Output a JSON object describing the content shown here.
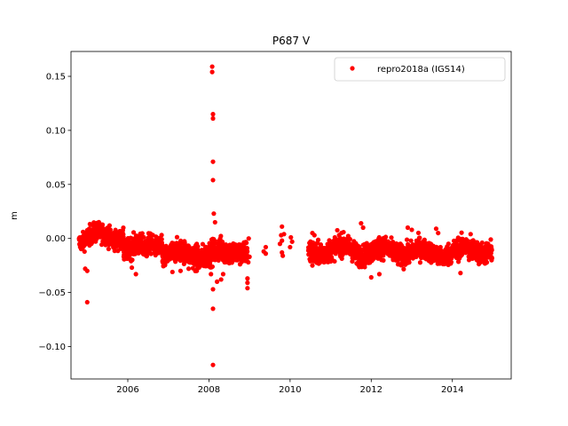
{
  "chart_data": {
    "type": "scatter",
    "title": "P687 V",
    "xlabel": "",
    "ylabel": "m",
    "xlim": [
      2004.6,
      2015.45
    ],
    "ylim": [
      -0.13,
      0.173
    ],
    "x_ticks": [
      2006,
      2008,
      2010,
      2012,
      2014
    ],
    "x_tick_labels": [
      "2006",
      "2008",
      "2010",
      "2012",
      "2014"
    ],
    "y_ticks": [
      -0.1,
      -0.05,
      0.0,
      0.05,
      0.1,
      0.15
    ],
    "y_tick_labels": [
      "−0.10",
      "−0.05",
      "0.00",
      "0.05",
      "0.10",
      "0.15"
    ],
    "grid": false,
    "legend_position": "top-right",
    "series": [
      {
        "name": "repro2018a (IGS14)",
        "color": "#ff0000",
        "marker": "circle",
        "segments": [
          {
            "x_start": 2004.8,
            "x_end": 2005.0,
            "mean": 0.0,
            "spread": 0.007
          },
          {
            "x_start": 2005.0,
            "x_end": 2005.9,
            "mean": 0.002,
            "spread": 0.008
          },
          {
            "x_start": 2005.9,
            "x_end": 2006.5,
            "mean": -0.01,
            "spread": 0.009
          },
          {
            "x_start": 2006.5,
            "x_end": 2006.85,
            "mean": -0.004,
            "spread": 0.008
          },
          {
            "x_start": 2006.85,
            "x_end": 2007.6,
            "mean": -0.015,
            "spread": 0.009
          },
          {
            "x_start": 2007.6,
            "x_end": 2008.6,
            "mean": -0.014,
            "spread": 0.01
          },
          {
            "x_start": 2008.6,
            "x_end": 2008.95,
            "mean": -0.01,
            "spread": 0.009
          },
          {
            "x_start": 2010.45,
            "x_end": 2010.7,
            "mean": -0.012,
            "spread": 0.01
          },
          {
            "x_start": 2010.7,
            "x_end": 2011.6,
            "mean": -0.01,
            "spread": 0.009
          },
          {
            "x_start": 2011.6,
            "x_end": 2012.4,
            "mean": -0.012,
            "spread": 0.009
          },
          {
            "x_start": 2012.4,
            "x_end": 2013.2,
            "mean": -0.012,
            "spread": 0.009
          },
          {
            "x_start": 2013.2,
            "x_end": 2013.8,
            "mean": -0.014,
            "spread": 0.008
          },
          {
            "x_start": 2013.8,
            "x_end": 2014.5,
            "mean": -0.012,
            "spread": 0.009
          },
          {
            "x_start": 2014.5,
            "x_end": 2014.98,
            "mean": -0.01,
            "spread": 0.009
          }
        ],
        "points": [
          [
            2005.0,
            -0.059
          ],
          [
            2005.0,
            -0.03
          ],
          [
            2004.95,
            -0.028
          ],
          [
            2006.2,
            -0.033
          ],
          [
            2006.1,
            -0.027
          ],
          [
            2007.1,
            -0.031
          ],
          [
            2007.3,
            -0.03
          ],
          [
            2007.5,
            -0.028
          ],
          [
            2007.7,
            -0.03
          ],
          [
            2008.08,
            0.159
          ],
          [
            2008.08,
            0.154
          ],
          [
            2008.1,
            0.115
          ],
          [
            2008.1,
            0.111
          ],
          [
            2008.1,
            0.071
          ],
          [
            2008.1,
            0.054
          ],
          [
            2008.12,
            0.023
          ],
          [
            2008.15,
            0.015
          ],
          [
            2008.05,
            -0.033
          ],
          [
            2008.1,
            -0.047
          ],
          [
            2008.1,
            -0.065
          ],
          [
            2008.1,
            -0.117
          ],
          [
            2008.2,
            -0.04
          ],
          [
            2008.3,
            -0.038
          ],
          [
            2008.35,
            -0.033
          ],
          [
            2008.95,
            -0.037
          ],
          [
            2008.95,
            -0.041
          ],
          [
            2008.95,
            -0.046
          ],
          [
            2008.97,
            -0.022
          ],
          [
            2009.0,
            -0.017
          ],
          [
            2008.98,
            0.0
          ],
          [
            2009.4,
            -0.008
          ],
          [
            2009.4,
            -0.014
          ],
          [
            2009.35,
            -0.012
          ],
          [
            2009.75,
            -0.005
          ],
          [
            2009.8,
            0.011
          ],
          [
            2009.8,
            -0.002
          ],
          [
            2009.85,
            0.004
          ],
          [
            2009.8,
            -0.013
          ],
          [
            2009.82,
            -0.016
          ],
          [
            2009.78,
            0.003
          ],
          [
            2010.05,
            -0.003
          ],
          [
            2010.0,
            -0.008
          ],
          [
            2010.02,
            0.001
          ],
          [
            2010.5,
            -0.005
          ],
          [
            2010.55,
            0.005
          ],
          [
            2010.6,
            0.003
          ],
          [
            2010.5,
            -0.021
          ],
          [
            2010.55,
            -0.025
          ],
          [
            2011.75,
            0.014
          ],
          [
            2011.8,
            0.01
          ],
          [
            2012.0,
            -0.036
          ],
          [
            2012.2,
            -0.033
          ],
          [
            2012.9,
            0.01
          ],
          [
            2013.0,
            0.008
          ],
          [
            2013.6,
            0.009
          ],
          [
            2013.65,
            0.005
          ],
          [
            2014.2,
            -0.032
          ],
          [
            2014.45,
            0.004
          ]
        ]
      }
    ]
  }
}
